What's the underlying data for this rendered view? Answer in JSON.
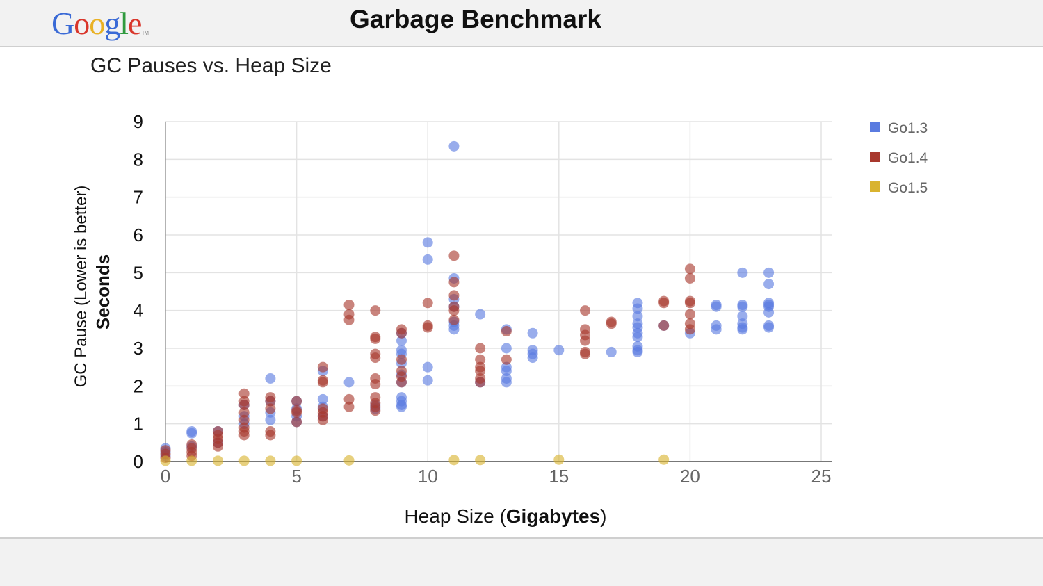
{
  "header": {
    "logo_letters": [
      {
        "ch": "G",
        "color": "#3a6ad6"
      },
      {
        "ch": "o",
        "color": "#d9362b"
      },
      {
        "ch": "o",
        "color": "#e9b124"
      },
      {
        "ch": "g",
        "color": "#3a6ad6"
      },
      {
        "ch": "l",
        "color": "#2f9a3e"
      },
      {
        "ch": "e",
        "color": "#d9362b"
      }
    ],
    "logo_tm": "TM",
    "title": "Garbage Benchmark"
  },
  "chart_data": {
    "type": "scatter",
    "title": "GC Pauses vs. Heap Size",
    "xlabel_prefix": "Heap Size (",
    "xlabel_bold": "Gigabytes",
    "xlabel_suffix": ")",
    "ylabel_line1": "GC Pause (Lower is better)",
    "ylabel_line2": "Seconds",
    "xlim": [
      0,
      25
    ],
    "ylim": [
      0,
      9
    ],
    "x_ticks": [
      0,
      5,
      10,
      15,
      20,
      25
    ],
    "y_ticks": [
      0,
      1,
      2,
      3,
      4,
      5,
      6,
      7,
      8,
      9
    ],
    "grid": true,
    "legend_position": "right",
    "series": [
      {
        "name": "Go1.3",
        "color": "#5a7be0",
        "points": [
          [
            0,
            0.35
          ],
          [
            0,
            0.25
          ],
          [
            0,
            0.15
          ],
          [
            1,
            0.8
          ],
          [
            1,
            0.75
          ],
          [
            1,
            0.4
          ],
          [
            2,
            0.8
          ],
          [
            2,
            0.5
          ],
          [
            3,
            1.5
          ],
          [
            3,
            1.2
          ],
          [
            3,
            1.0
          ],
          [
            4,
            2.2
          ],
          [
            4,
            1.6
          ],
          [
            4,
            1.3
          ],
          [
            4,
            1.1
          ],
          [
            5,
            1.6
          ],
          [
            5,
            1.4
          ],
          [
            5,
            1.2
          ],
          [
            5,
            1.05
          ],
          [
            6,
            1.65
          ],
          [
            6,
            1.45
          ],
          [
            6,
            1.2
          ],
          [
            6,
            2.4
          ],
          [
            7,
            2.1
          ],
          [
            8,
            1.5
          ],
          [
            8,
            1.4
          ],
          [
            9,
            3.4
          ],
          [
            9,
            3.2
          ],
          [
            9,
            2.95
          ],
          [
            9,
            2.85
          ],
          [
            9,
            2.6
          ],
          [
            9,
            2.3
          ],
          [
            9,
            2.1
          ],
          [
            9,
            1.7
          ],
          [
            9,
            1.6
          ],
          [
            9,
            1.5
          ],
          [
            9,
            1.45
          ],
          [
            10,
            5.8
          ],
          [
            10,
            5.35
          ],
          [
            10,
            2.5
          ],
          [
            10,
            2.15
          ],
          [
            11,
            8.35
          ],
          [
            11,
            4.85
          ],
          [
            11,
            4.3
          ],
          [
            11,
            4.1
          ],
          [
            11,
            3.7
          ],
          [
            11,
            3.6
          ],
          [
            11,
            3.5
          ],
          [
            12,
            3.9
          ],
          [
            12,
            2.1
          ],
          [
            13,
            3.5
          ],
          [
            13,
            3.0
          ],
          [
            13,
            2.5
          ],
          [
            13,
            2.4
          ],
          [
            13,
            2.2
          ],
          [
            13,
            2.1
          ],
          [
            14,
            3.4
          ],
          [
            14,
            2.95
          ],
          [
            14,
            2.85
          ],
          [
            14,
            2.75
          ],
          [
            15,
            2.95
          ],
          [
            17,
            2.9
          ],
          [
            18,
            4.2
          ],
          [
            18,
            4.05
          ],
          [
            18,
            3.85
          ],
          [
            18,
            3.65
          ],
          [
            18,
            3.55
          ],
          [
            18,
            3.4
          ],
          [
            18,
            3.3
          ],
          [
            18,
            3.05
          ],
          [
            18,
            2.95
          ],
          [
            18,
            2.9
          ],
          [
            19,
            3.6
          ],
          [
            20,
            3.4
          ],
          [
            21,
            4.15
          ],
          [
            21,
            4.1
          ],
          [
            21,
            3.6
          ],
          [
            21,
            3.5
          ],
          [
            22,
            5.0
          ],
          [
            22,
            4.15
          ],
          [
            22,
            4.1
          ],
          [
            22,
            3.85
          ],
          [
            22,
            3.65
          ],
          [
            22,
            3.55
          ],
          [
            22,
            3.5
          ],
          [
            23,
            5.0
          ],
          [
            23,
            4.7
          ],
          [
            23,
            4.2
          ],
          [
            23,
            4.15
          ],
          [
            23,
            4.1
          ],
          [
            23,
            3.95
          ],
          [
            23,
            3.6
          ],
          [
            23,
            3.55
          ]
        ]
      },
      {
        "name": "Go1.4",
        "color": "#a8382d",
        "points": [
          [
            0,
            0.3
          ],
          [
            0,
            0.2
          ],
          [
            0,
            0.1
          ],
          [
            1,
            0.45
          ],
          [
            1,
            0.35
          ],
          [
            1,
            0.25
          ],
          [
            1,
            0.15
          ],
          [
            2,
            0.8
          ],
          [
            2,
            0.7
          ],
          [
            2,
            0.6
          ],
          [
            2,
            0.5
          ],
          [
            2,
            0.4
          ],
          [
            3,
            1.8
          ],
          [
            3,
            1.6
          ],
          [
            3,
            1.5
          ],
          [
            3,
            1.3
          ],
          [
            3,
            1.1
          ],
          [
            3,
            0.9
          ],
          [
            3,
            0.8
          ],
          [
            3,
            0.7
          ],
          [
            4,
            1.7
          ],
          [
            4,
            1.6
          ],
          [
            4,
            1.4
          ],
          [
            4,
            0.8
          ],
          [
            4,
            0.7
          ],
          [
            5,
            1.6
          ],
          [
            5,
            1.35
          ],
          [
            5,
            1.3
          ],
          [
            5,
            1.05
          ],
          [
            6,
            2.5
          ],
          [
            6,
            2.15
          ],
          [
            6,
            2.1
          ],
          [
            6,
            1.4
          ],
          [
            6,
            1.3
          ],
          [
            6,
            1.2
          ],
          [
            6,
            1.1
          ],
          [
            7,
            4.15
          ],
          [
            7,
            3.9
          ],
          [
            7,
            3.75
          ],
          [
            7,
            1.65
          ],
          [
            7,
            1.45
          ],
          [
            8,
            4.0
          ],
          [
            8,
            3.3
          ],
          [
            8,
            3.25
          ],
          [
            8,
            2.85
          ],
          [
            8,
            2.75
          ],
          [
            8,
            2.2
          ],
          [
            8,
            2.05
          ],
          [
            8,
            1.7
          ],
          [
            8,
            1.55
          ],
          [
            8,
            1.45
          ],
          [
            8,
            1.35
          ],
          [
            9,
            3.5
          ],
          [
            9,
            3.4
          ],
          [
            9,
            2.7
          ],
          [
            9,
            2.4
          ],
          [
            9,
            2.25
          ],
          [
            9,
            2.1
          ],
          [
            10,
            4.2
          ],
          [
            10,
            3.6
          ],
          [
            10,
            3.55
          ],
          [
            11,
            5.45
          ],
          [
            11,
            4.75
          ],
          [
            11,
            4.4
          ],
          [
            11,
            4.1
          ],
          [
            11,
            4.0
          ],
          [
            11,
            3.75
          ],
          [
            12,
            3.0
          ],
          [
            12,
            2.7
          ],
          [
            12,
            2.5
          ],
          [
            12,
            2.4
          ],
          [
            12,
            2.2
          ],
          [
            12,
            2.1
          ],
          [
            13,
            3.45
          ],
          [
            13,
            2.7
          ],
          [
            16,
            4.0
          ],
          [
            16,
            3.5
          ],
          [
            16,
            3.35
          ],
          [
            16,
            3.2
          ],
          [
            16,
            2.9
          ],
          [
            16,
            2.85
          ],
          [
            17,
            3.7
          ],
          [
            17,
            3.65
          ],
          [
            19,
            4.25
          ],
          [
            19,
            4.2
          ],
          [
            19,
            3.6
          ],
          [
            20,
            5.1
          ],
          [
            20,
            4.85
          ],
          [
            20,
            4.25
          ],
          [
            20,
            4.2
          ],
          [
            20,
            3.9
          ],
          [
            20,
            3.65
          ],
          [
            20,
            3.5
          ]
        ]
      },
      {
        "name": "Go1.5",
        "color": "#d9b32f",
        "points": [
          [
            0,
            0.02
          ],
          [
            1,
            0.02
          ],
          [
            2,
            0.02
          ],
          [
            3,
            0.02
          ],
          [
            4,
            0.02
          ],
          [
            5,
            0.02
          ],
          [
            7,
            0.03
          ],
          [
            11,
            0.04
          ],
          [
            12,
            0.04
          ],
          [
            15,
            0.05
          ],
          [
            19,
            0.05
          ]
        ]
      }
    ]
  }
}
